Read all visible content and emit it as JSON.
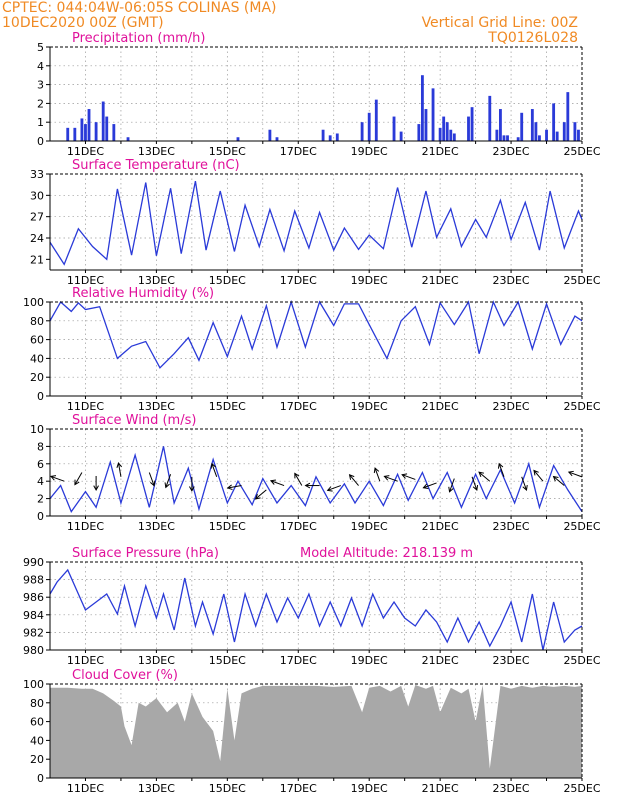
{
  "header": {
    "line1": "CPTEC:   044:04W-06:05S   COLINAS (MA)",
    "line2": "10DEC2020 00Z (GMT)",
    "right1": "Vertical Grid Line: 00Z",
    "right2": "TQ0126L028"
  },
  "colors": {
    "header": "#f08a24",
    "title": "#e0119b",
    "line": "#2a3ad8",
    "bar": "#2a3ad8",
    "cloud": "#a8a8a8",
    "grid": "#9a9a9a"
  },
  "x_labels": [
    "11DEC",
    "13DEC",
    "15DEC",
    "17DEC",
    "19DEC",
    "21DEC",
    "23DEC",
    "25DEC"
  ],
  "chart_data": [
    {
      "id": "precip",
      "type": "bar",
      "title": "Precipitation (mm/h)",
      "ylim": [
        0,
        5
      ],
      "yticks": [
        "0",
        "1",
        "2",
        "3",
        "4",
        "5"
      ],
      "x": [
        0.5,
        0.7,
        0.9,
        1.0,
        1.1,
        1.3,
        1.5,
        1.6,
        1.8,
        2.2,
        5.3,
        6.2,
        6.4,
        7.7,
        7.9,
        8.1,
        8.8,
        9.0,
        9.2,
        9.7,
        9.9,
        10.4,
        10.5,
        10.6,
        10.8,
        11.0,
        11.1,
        11.2,
        11.3,
        11.4,
        11.8,
        11.9,
        12.4,
        12.6,
        12.7,
        12.8,
        12.9,
        13.2,
        13.3,
        13.6,
        13.7,
        13.8,
        14.0,
        14.2,
        14.3,
        14.5,
        14.6,
        14.8,
        14.9
      ],
      "values": [
        0.7,
        0.7,
        1.2,
        0.9,
        1.7,
        1.0,
        2.1,
        1.3,
        0.9,
        0.2,
        0.2,
        0.6,
        0.2,
        0.6,
        0.3,
        0.4,
        1.0,
        1.5,
        2.2,
        1.3,
        0.5,
        0.9,
        3.5,
        1.7,
        2.8,
        0.7,
        1.3,
        1.0,
        0.6,
        0.4,
        1.3,
        1.8,
        2.4,
        0.6,
        1.7,
        0.3,
        0.3,
        0.2,
        1.5,
        1.7,
        1.0,
        0.3,
        0.6,
        2.0,
        0.5,
        1.0,
        2.6,
        1.0,
        0.6
      ]
    },
    {
      "id": "temp",
      "type": "line",
      "title": "Surface Temperature (nC)",
      "ylim": [
        19.5,
        33
      ],
      "yticks": [
        "21",
        "24",
        "27",
        "30",
        "33"
      ],
      "x": [
        0.0,
        0.4,
        0.8,
        1.2,
        1.6,
        1.9,
        2.3,
        2.7,
        3.0,
        3.4,
        3.7,
        4.1,
        4.4,
        4.8,
        5.2,
        5.5,
        5.9,
        6.2,
        6.6,
        6.9,
        7.3,
        7.6,
        8.0,
        8.3,
        8.7,
        9.0,
        9.4,
        9.8,
        10.2,
        10.6,
        10.9,
        11.3,
        11.6,
        12.0,
        12.3,
        12.7,
        13.0,
        13.4,
        13.8,
        14.1,
        14.5,
        14.9,
        15.0
      ],
      "values": [
        23.4,
        20.3,
        25.3,
        22.8,
        21.0,
        30.9,
        21.6,
        31.8,
        21.5,
        31.0,
        21.8,
        32.0,
        22.3,
        30.6,
        22.1,
        28.6,
        22.8,
        28.0,
        22.2,
        27.8,
        22.6,
        27.6,
        22.3,
        25.4,
        22.4,
        24.4,
        22.5,
        31.1,
        22.7,
        30.6,
        24.1,
        28.1,
        22.8,
        26.6,
        24.1,
        29.3,
        23.8,
        29.0,
        22.3,
        30.6,
        22.6,
        27.8,
        26.6
      ]
    },
    {
      "id": "rh",
      "type": "line",
      "title": "Relative Humidity (%)",
      "ylim": [
        0,
        100
      ],
      "yticks": [
        "0",
        "20",
        "40",
        "60",
        "80",
        "100"
      ],
      "x": [
        0.0,
        0.3,
        0.6,
        0.8,
        1.0,
        1.4,
        1.9,
        2.3,
        2.7,
        3.1,
        3.5,
        3.9,
        4.2,
        4.6,
        5.0,
        5.4,
        5.7,
        6.1,
        6.4,
        6.8,
        7.2,
        7.6,
        8.0,
        8.3,
        8.7,
        9.0,
        9.5,
        9.9,
        10.3,
        10.7,
        11.0,
        11.4,
        11.8,
        12.1,
        12.5,
        12.8,
        13.2,
        13.6,
        14.0,
        14.4,
        14.8,
        15.0
      ],
      "values": [
        80,
        100,
        90,
        99,
        92,
        95,
        40,
        53,
        58,
        30,
        45,
        62,
        38,
        78,
        42,
        85,
        50,
        96,
        52,
        100,
        52,
        100,
        75,
        98,
        98,
        76,
        40,
        80,
        95,
        55,
        99,
        76,
        100,
        45,
        100,
        75,
        100,
        50,
        98,
        55,
        85,
        80
      ]
    },
    {
      "id": "wind",
      "type": "line",
      "title": "Surface Wind (m/s)",
      "ylim": [
        0,
        10
      ],
      "yticks": [
        "0",
        "2",
        "4",
        "6",
        "8",
        "10"
      ],
      "x": [
        0.0,
        0.3,
        0.6,
        1.0,
        1.3,
        1.7,
        2.0,
        2.4,
        2.8,
        3.2,
        3.5,
        3.9,
        4.2,
        4.6,
        5.0,
        5.3,
        5.7,
        6.0,
        6.4,
        6.8,
        7.2,
        7.5,
        7.9,
        8.3,
        8.6,
        9.0,
        9.4,
        9.8,
        10.1,
        10.5,
        10.8,
        11.2,
        11.6,
        12.0,
        12.3,
        12.7,
        13.1,
        13.5,
        13.8,
        14.2,
        14.6,
        15.0
      ],
      "values": [
        2,
        3.5,
        0.5,
        2.8,
        1.0,
        6.2,
        1.5,
        7.0,
        1.0,
        8.0,
        1.5,
        5.5,
        0.8,
        6.5,
        1.5,
        4.0,
        1.3,
        4.3,
        1.5,
        3.5,
        1.2,
        4.5,
        1.5,
        3.7,
        1.5,
        4.0,
        1.2,
        4.8,
        1.8,
        5.0,
        2.0,
        5.0,
        1.0,
        4.8,
        2.0,
        5.3,
        1.5,
        6.0,
        1.0,
        5.8,
        3.0,
        0.5
      ],
      "barbs": {
        "x": [
          0.4,
          0.9,
          1.3,
          2.0,
          2.8,
          3.4,
          4.0,
          4.7,
          5.4,
          6.1,
          6.6,
          7.1,
          7.6,
          8.2,
          8.7,
          9.3,
          9.8,
          10.3,
          10.9,
          11.4,
          11.9,
          12.4,
          12.8,
          13.3,
          13.9,
          14.5,
          15.0
        ],
        "y": [
          4.0,
          5.0,
          4.6,
          4.5,
          5.0,
          4.8,
          4.5,
          4.5,
          3.5,
          3.0,
          3.5,
          3.5,
          3.5,
          3.5,
          3.5,
          4.0,
          4.0,
          4.2,
          3.8,
          4.3,
          4.5,
          4.0,
          4.5,
          4.5,
          4.0,
          3.5,
          4.5
        ],
        "dir": [
          200,
          120,
          90,
          260,
          70,
          110,
          90,
          250,
          170,
          140,
          200,
          240,
          180,
          160,
          230,
          250,
          200,
          200,
          160,
          110,
          70,
          220,
          250,
          70,
          230,
          220,
          200
        ]
      }
    },
    {
      "id": "press",
      "type": "line",
      "title": "Surface Pressure (hPa)",
      "note": "Model Altitude: 218.139 m",
      "ylim": [
        980,
        991
      ],
      "yticks": [
        "980",
        "982",
        "984",
        "986",
        "988",
        "990"
      ],
      "x": [
        0.0,
        0.2,
        0.5,
        0.8,
        1.0,
        1.3,
        1.6,
        1.9,
        2.1,
        2.4,
        2.7,
        3.0,
        3.2,
        3.5,
        3.8,
        4.1,
        4.3,
        4.6,
        4.9,
        5.2,
        5.5,
        5.8,
        6.1,
        6.4,
        6.7,
        7.0,
        7.3,
        7.6,
        7.9,
        8.2,
        8.5,
        8.8,
        9.1,
        9.4,
        9.7,
        10.0,
        10.3,
        10.6,
        10.9,
        11.2,
        11.5,
        11.8,
        12.1,
        12.4,
        12.7,
        13.0,
        13.3,
        13.6,
        13.9,
        14.2,
        14.5,
        14.8,
        15.0
      ],
      "values": [
        987,
        988.5,
        990,
        987,
        985,
        986,
        987,
        984.5,
        988,
        983,
        988,
        984,
        987,
        982.5,
        989,
        983,
        986,
        982,
        987,
        981,
        987,
        983,
        987,
        983.5,
        986.5,
        984,
        987,
        983,
        986,
        983,
        986.5,
        983,
        987,
        984,
        986,
        984,
        983,
        985,
        983.5,
        981,
        984,
        981,
        983.5,
        980.5,
        983,
        986,
        981,
        987,
        980,
        986,
        981,
        982.5,
        983
      ]
    },
    {
      "id": "cloud",
      "type": "area",
      "title": "Cloud Cover (%)",
      "ylim": [
        0,
        100
      ],
      "yticks": [
        "0",
        "20",
        "40",
        "60",
        "80",
        "100"
      ],
      "x": [
        0.0,
        0.5,
        0.9,
        1.2,
        1.5,
        1.8,
        2.0,
        2.1,
        2.3,
        2.5,
        2.7,
        3.0,
        3.3,
        3.6,
        3.8,
        4.0,
        4.3,
        4.6,
        4.8,
        5.0,
        5.2,
        5.4,
        5.7,
        6.0,
        6.5,
        7.0,
        7.5,
        8.0,
        8.5,
        8.8,
        9.0,
        9.3,
        9.6,
        9.9,
        10.1,
        10.3,
        10.6,
        10.8,
        11.0,
        11.3,
        11.6,
        11.8,
        12.0,
        12.2,
        12.4,
        12.7,
        13.0,
        13.3,
        13.6,
        13.9,
        14.2,
        14.5,
        14.8,
        15.0
      ],
      "values": [
        96,
        96,
        95,
        95,
        90,
        82,
        76,
        55,
        35,
        80,
        76,
        85,
        70,
        80,
        60,
        90,
        65,
        50,
        18,
        95,
        40,
        90,
        95,
        98,
        98,
        98,
        98,
        97,
        98,
        70,
        96,
        98,
        92,
        98,
        76,
        99,
        95,
        98,
        70,
        96,
        90,
        95,
        60,
        99,
        10,
        98,
        95,
        98,
        96,
        98,
        97,
        98,
        97,
        98
      ]
    }
  ]
}
